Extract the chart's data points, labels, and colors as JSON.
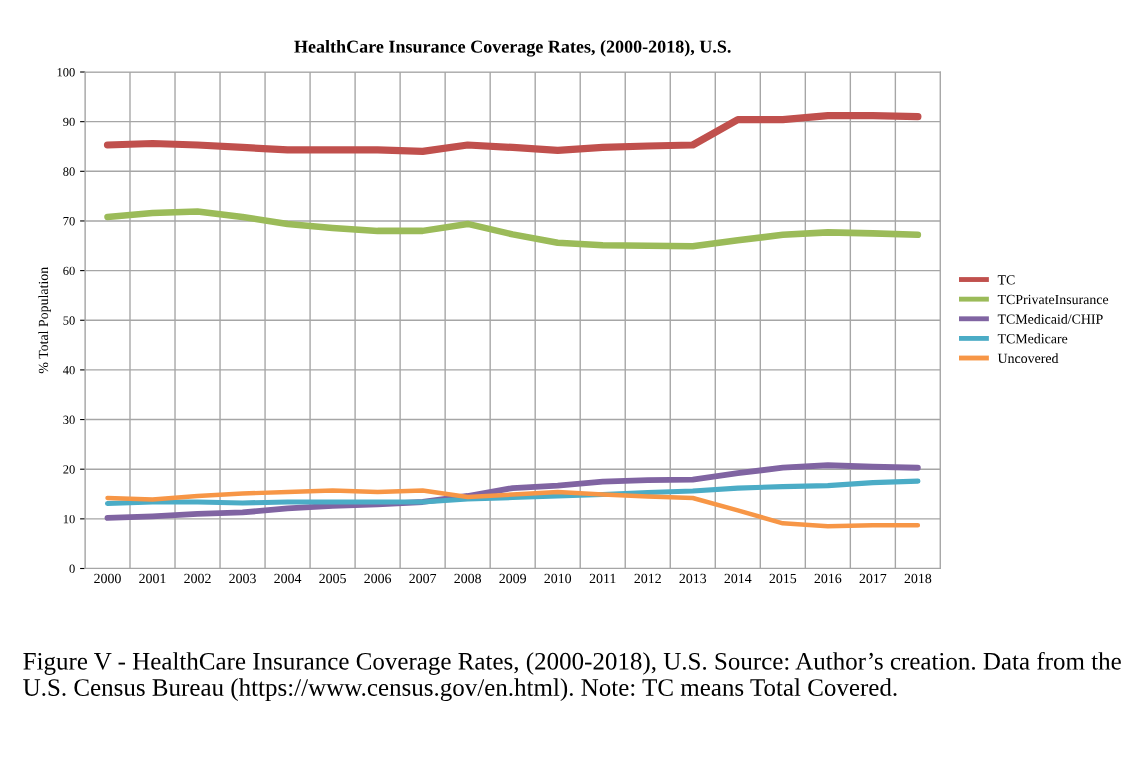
{
  "chart_data": {
    "type": "line",
    "title": "HealthCare Insurance Coverage Rates, (2000-2018), U.S.",
    "ylabel": "% Total Population",
    "categories": [
      "2000",
      "2001",
      "2002",
      "2003",
      "2004",
      "2005",
      "2006",
      "2007",
      "2008",
      "2009",
      "2010",
      "2011",
      "2012",
      "2013",
      "2014",
      "2015",
      "2016",
      "2017",
      "2018"
    ],
    "series": [
      {
        "name": "TC",
        "color": "#c0504d",
        "values": [
          85.3,
          85.6,
          85.3,
          84.8,
          84.3,
          84.3,
          84.3,
          84.0,
          85.3,
          84.8,
          84.2,
          84.8,
          85.1,
          85.3,
          90.4,
          90.4,
          91.2,
          91.2,
          91.0
        ]
      },
      {
        "name": "TCPrivateInsurance",
        "color": "#9bbb59",
        "values": [
          70.8,
          71.6,
          71.9,
          70.8,
          69.4,
          68.6,
          68.0,
          68.0,
          69.4,
          67.3,
          65.6,
          65.1,
          65.0,
          64.9,
          66.1,
          67.2,
          67.7,
          67.5,
          67.2
        ]
      },
      {
        "name": "TCMedicaid/CHIP",
        "color": "#8064a2",
        "values": [
          10.2,
          10.5,
          11.0,
          11.3,
          12.1,
          12.6,
          12.9,
          13.4,
          14.6,
          16.2,
          16.7,
          17.5,
          17.8,
          17.9,
          19.2,
          20.3,
          20.8,
          20.5,
          20.3
        ]
      },
      {
        "name": "TCMedicare",
        "color": "#4bacc6",
        "values": [
          13.1,
          13.4,
          13.4,
          13.2,
          13.4,
          13.4,
          13.4,
          13.4,
          14.0,
          14.3,
          14.6,
          14.9,
          15.3,
          15.6,
          16.2,
          16.5,
          16.7,
          17.3,
          17.6
        ]
      },
      {
        "name": "Uncovered",
        "color": "#f79646",
        "values": [
          14.2,
          13.9,
          14.6,
          15.1,
          15.4,
          15.7,
          15.4,
          15.7,
          14.4,
          14.9,
          15.4,
          14.9,
          14.5,
          14.2,
          11.7,
          9.1,
          8.5,
          8.7,
          8.7
        ]
      }
    ],
    "ylim": [
      0,
      100
    ],
    "yticks": [
      0,
      10,
      20,
      30,
      40,
      50,
      60,
      70,
      80,
      90,
      100
    ],
    "grid": true,
    "legend": "right",
    "marker": "none",
    "line_style": "solid",
    "annotations": [
      "Figure V - HealthCare Insurance Coverage Rates, (2000-2018), U.S. Source: Author’s creation. Data from the U.S. Census Bureau (https://www.census.gov/en.html). Note: TC means Total Covered."
    ]
  }
}
